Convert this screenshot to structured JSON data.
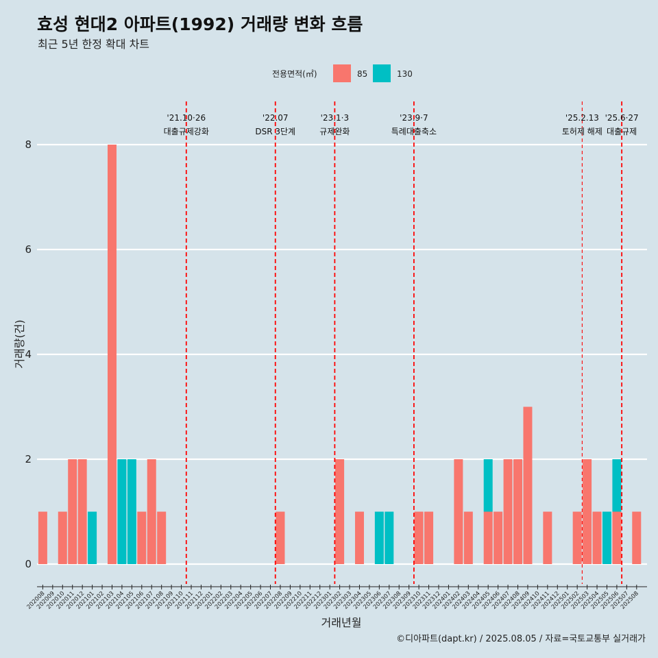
{
  "chart_data": {
    "type": "bar",
    "title": "효성 현대2 아파트(1992) 거래량 변화 흐름",
    "subtitle": "최근 5년 한정 확대 차트",
    "xlabel": "거래년월",
    "ylabel": "거래량(건)",
    "ylim": [
      0,
      8.8
    ],
    "yticks": [
      0,
      2,
      4,
      6,
      8
    ],
    "grid": "horizontal",
    "legend": {
      "title": "전용면적(㎡)",
      "placement": "top-center"
    },
    "categories": [
      "202008",
      "202009",
      "202010",
      "202011",
      "202012",
      "202101",
      "202102",
      "202103",
      "202104",
      "202105",
      "202106",
      "202107",
      "202108",
      "202109",
      "202110",
      "202111",
      "202112",
      "202201",
      "202202",
      "202203",
      "202204",
      "202205",
      "202206",
      "202207",
      "202208",
      "202209",
      "202210",
      "202211",
      "202212",
      "202301",
      "202302",
      "202303",
      "202304",
      "202305",
      "202306",
      "202307",
      "202308",
      "202309",
      "202310",
      "202311",
      "202312",
      "202401",
      "202402",
      "202403",
      "202404",
      "202405",
      "202406",
      "202407",
      "202408",
      "202409",
      "202410",
      "202411",
      "202412",
      "202501",
      "202502",
      "202503",
      "202504",
      "202505",
      "202506",
      "202507",
      "202508"
    ],
    "series": [
      {
        "name": "85",
        "color": "#f8766d",
        "values": [
          1,
          0,
          1,
          2,
          2,
          0,
          0,
          8,
          0,
          0,
          1,
          2,
          1,
          0,
          0,
          0,
          0,
          0,
          0,
          0,
          0,
          0,
          0,
          0,
          1,
          0,
          0,
          0,
          0,
          0,
          2,
          0,
          1,
          0,
          0,
          0,
          0,
          0,
          1,
          1,
          0,
          0,
          2,
          1,
          0,
          1,
          1,
          2,
          2,
          3,
          0,
          1,
          0,
          0,
          1,
          2,
          1,
          0,
          1,
          0,
          1
        ]
      },
      {
        "name": "130",
        "color": "#00bfc4",
        "values": [
          0,
          0,
          0,
          0,
          0,
          1,
          0,
          0,
          2,
          2,
          0,
          0,
          0,
          0,
          0,
          0,
          0,
          0,
          0,
          0,
          0,
          0,
          0,
          0,
          0,
          0,
          0,
          0,
          0,
          0,
          0,
          0,
          0,
          0,
          1,
          1,
          0,
          0,
          0,
          0,
          0,
          0,
          0,
          0,
          0,
          1,
          0,
          0,
          0,
          0,
          0,
          0,
          0,
          0,
          0,
          0,
          0,
          1,
          1,
          0,
          0
        ]
      }
    ],
    "annotations": [
      {
        "x": "202110",
        "date": "'21.10·26",
        "label": "대출규제강화",
        "style": "thick"
      },
      {
        "x": "202207",
        "date": "'22.07",
        "label": "DSR 3단계",
        "style": "thick"
      },
      {
        "x": "202301",
        "date": "'23.1·3",
        "label": "규제완화",
        "style": "thick"
      },
      {
        "x": "202309",
        "date": "'23.9·7",
        "label": "특례대출축소",
        "style": "thick"
      },
      {
        "x": "202502",
        "date": "'25.2.13",
        "label": "토허제 해제",
        "style": "thin"
      },
      {
        "x": "202506",
        "date": "'25.6·27",
        "label": "대출규제",
        "style": "thick"
      }
    ]
  },
  "caption": "©디아파트(dapt.kr) / 2025.08.05 / 자료=국토교통부 실거래가"
}
